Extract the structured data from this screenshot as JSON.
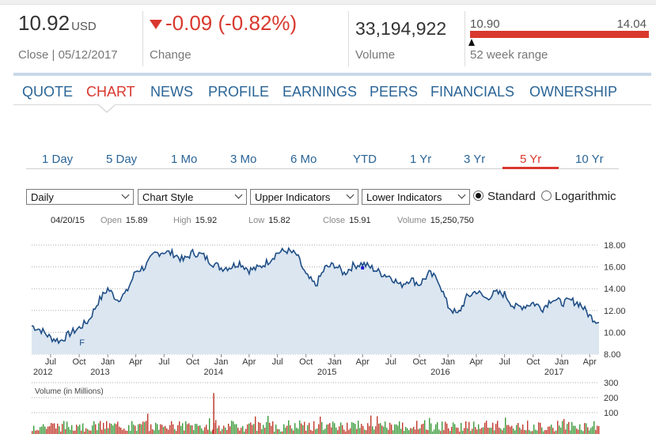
{
  "quote": {
    "price": "10.92",
    "currency": "USD",
    "close_label": "Close | 05/12/2017",
    "change": "-0.09 (-0.82%)",
    "change_label": "Change",
    "volume": "33,194,922",
    "volume_label": "Volume",
    "range_low": "10.90",
    "range_high": "14.04",
    "range_label": "52 week range",
    "range_position": 0.01
  },
  "nav": {
    "tabs": [
      "QUOTE",
      "CHART",
      "NEWS",
      "PROFILE",
      "EARNINGS",
      "PEERS",
      "FINANCIALS",
      "OWNERSHIP"
    ],
    "active": "CHART"
  },
  "ranges": {
    "tabs": [
      "1 Day",
      "5 Day",
      "1 Mo",
      "3 Mo",
      "6 Mo",
      "YTD",
      "1 Yr",
      "3 Yr",
      "5 Yr",
      "10 Yr"
    ],
    "active": "5 Yr"
  },
  "controls": {
    "interval": "Daily",
    "style": "Chart Style",
    "upper": "Upper Indicators",
    "lower": "Lower Indicators",
    "scale_standard": "Standard",
    "scale_log": "Logarithmic",
    "scale_selected": "Standard"
  },
  "ohlc": {
    "date": "04/20/15",
    "open_label": "Open",
    "open": "15.89",
    "high_label": "High",
    "high": "15.92",
    "low_label": "Low",
    "low": "15.82",
    "close_label": "Close",
    "close": "15.91",
    "volume_label": "Volume",
    "volume": "15,250,750"
  },
  "colors": {
    "accent_red": "#d9382e",
    "link_blue": "#2a6496",
    "line": "#1f4e86",
    "area": "#dbe6f1",
    "vol_green": "#3a9a3a",
    "vol_red": "#c0392b"
  },
  "chart_data": {
    "type": "area",
    "title": "",
    "price_axis": {
      "ylim": [
        8,
        18
      ],
      "ticks": [
        "18.00",
        "16.00",
        "14.00",
        "12.00",
        "10.00",
        "8.00"
      ],
      "grid": true,
      "side": "right"
    },
    "x_ticks": [
      {
        "label": "Jul",
        "year": "2012"
      },
      {
        "label": "Oct",
        "year": ""
      },
      {
        "label": "Jan",
        "year": "2013"
      },
      {
        "label": "Apr",
        "year": ""
      },
      {
        "label": "Jul",
        "year": ""
      },
      {
        "label": "Oct",
        "year": ""
      },
      {
        "label": "Jan",
        "year": "2014"
      },
      {
        "label": "Apr",
        "year": ""
      },
      {
        "label": "Jul",
        "year": ""
      },
      {
        "label": "Oct",
        "year": ""
      },
      {
        "label": "Jan",
        "year": "2015"
      },
      {
        "label": "Apr",
        "year": ""
      },
      {
        "label": "Jul",
        "year": ""
      },
      {
        "label": "Oct",
        "year": ""
      },
      {
        "label": "Jan",
        "year": "2016"
      },
      {
        "label": "Apr",
        "year": ""
      },
      {
        "label": "Jul",
        "year": ""
      },
      {
        "label": "Oct",
        "year": ""
      },
      {
        "label": "Jan",
        "year": "2017"
      },
      {
        "label": "Apr",
        "year": ""
      }
    ],
    "price_series": {
      "name": "",
      "x": [
        "2012-05",
        "2012-06",
        "2012-07",
        "2012-08",
        "2012-09",
        "2012-10",
        "2012-11",
        "2012-12",
        "2013-01",
        "2013-02",
        "2013-03",
        "2013-04",
        "2013-05",
        "2013-06",
        "2013-07",
        "2013-08",
        "2013-09",
        "2013-10",
        "2013-11",
        "2013-12",
        "2014-01",
        "2014-02",
        "2014-03",
        "2014-04",
        "2014-05",
        "2014-06",
        "2014-07",
        "2014-08",
        "2014-09",
        "2014-10",
        "2014-11",
        "2014-12",
        "2015-01",
        "2015-02",
        "2015-03",
        "2015-04",
        "2015-05",
        "2015-06",
        "2015-07",
        "2015-08",
        "2015-09",
        "2015-10",
        "2015-11",
        "2015-12",
        "2016-01",
        "2016-02",
        "2016-03",
        "2016-04",
        "2016-05",
        "2016-06",
        "2016-07",
        "2016-08",
        "2016-09",
        "2016-10",
        "2016-11",
        "2016-12",
        "2017-01",
        "2017-02",
        "2017-03",
        "2017-04",
        "2017-05"
      ],
      "values": [
        10.6,
        10.2,
        9.5,
        9.2,
        9.9,
        10.4,
        11.1,
        12.8,
        14.0,
        13.0,
        13.6,
        15.6,
        16.0,
        17.2,
        17.4,
        17.2,
        16.6,
        17.3,
        17.1,
        16.4,
        15.9,
        16.0,
        16.4,
        15.7,
        15.9,
        16.5,
        17.3,
        17.5,
        17.1,
        15.2,
        14.3,
        15.9,
        16.2,
        15.4,
        16.1,
        16.3,
        15.9,
        15.4,
        15.1,
        14.3,
        14.9,
        14.4,
        15.4,
        14.8,
        12.4,
        11.6,
        13.2,
        13.8,
        13.1,
        13.6,
        13.5,
        12.3,
        12.4,
        12.7,
        12.2,
        13.1,
        12.7,
        12.9,
        12.6,
        11.5,
        10.9
      ]
    },
    "markers": [
      {
        "x": "2012-09",
        "label": "F"
      }
    ],
    "volume": {
      "label": "Volume (in Millions)",
      "ylim": [
        0,
        300
      ],
      "ticks": [
        "300",
        "200",
        "100"
      ]
    }
  }
}
